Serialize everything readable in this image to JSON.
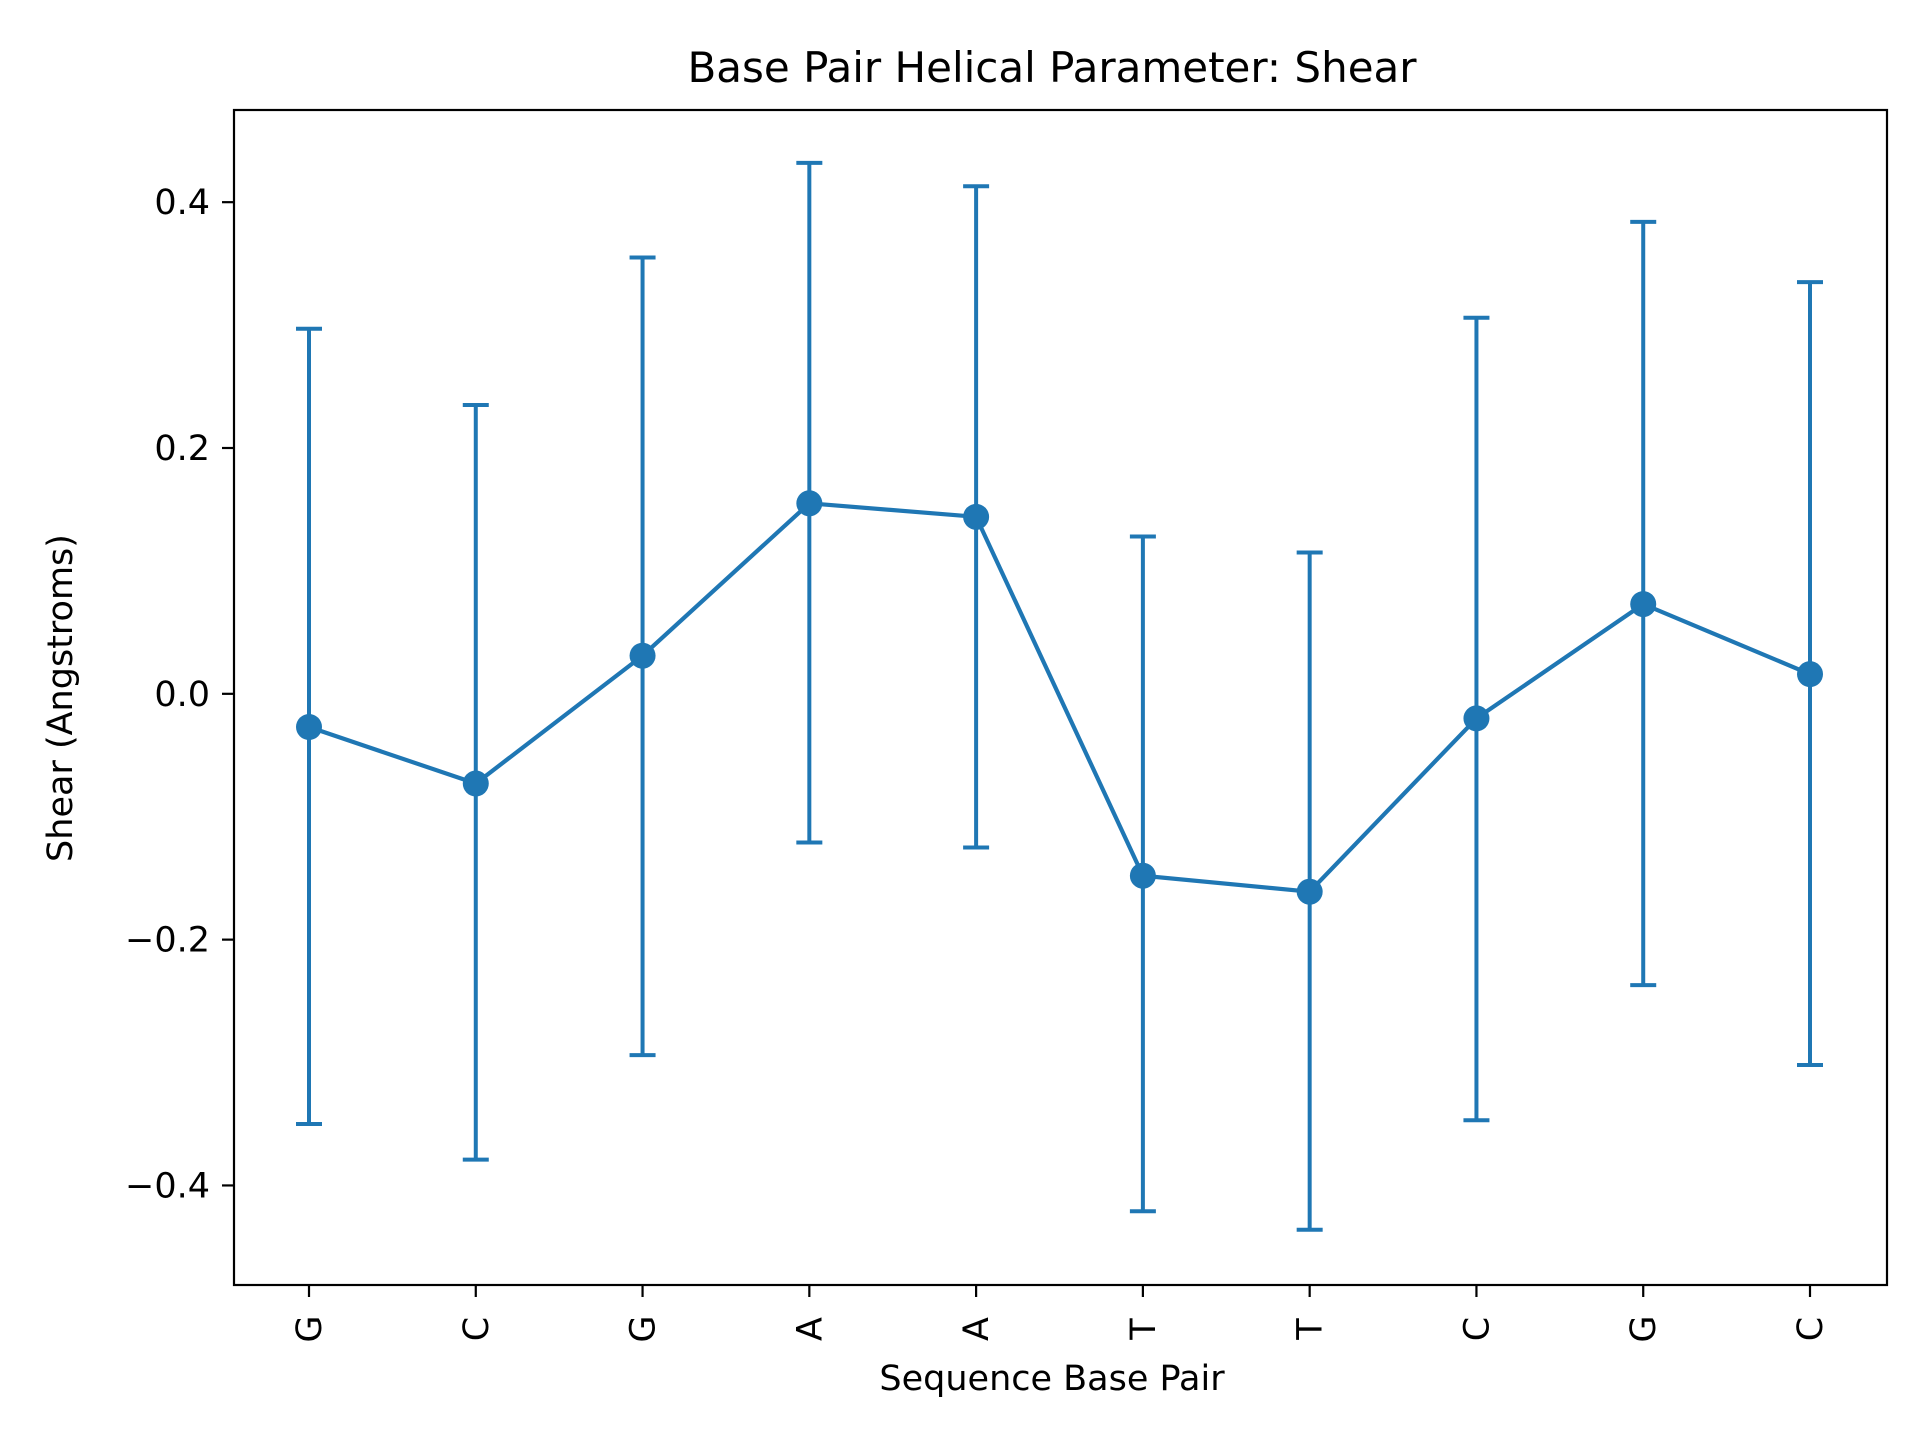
{
  "chart_data": {
    "type": "line",
    "title": "Base Pair  Helical Parameter: Shear",
    "xlabel": "Sequence Base Pair",
    "ylabel": "Shear (Angstroms)",
    "categories": [
      "G",
      "C",
      "G",
      "A",
      "A",
      "T",
      "T",
      "C",
      "G",
      "C"
    ],
    "series": [
      {
        "values": [
          -0.027,
          -0.073,
          0.031,
          0.155,
          0.144,
          -0.148,
          -0.161,
          -0.02,
          0.073,
          0.016
        ],
        "error_lower": [
          -0.35,
          -0.379,
          -0.294,
          -0.121,
          -0.125,
          -0.421,
          -0.436,
          -0.347,
          -0.237,
          -0.302
        ],
        "error_upper": [
          0.297,
          0.235,
          0.355,
          0.432,
          0.413,
          0.128,
          0.115,
          0.306,
          0.384,
          0.335
        ]
      }
    ],
    "yticks": [
      -0.4,
      -0.2,
      0.0,
      0.2,
      0.4
    ],
    "ytick_labels": [
      "−0.4",
      "−0.2",
      "0.0",
      "0.2",
      "0.4"
    ],
    "ylim": [
      -0.481,
      0.475
    ],
    "grid": false,
    "legend": "none",
    "colors": {
      "series": "#1f77b4",
      "axes": "#000000",
      "background": "#ffffff"
    }
  }
}
